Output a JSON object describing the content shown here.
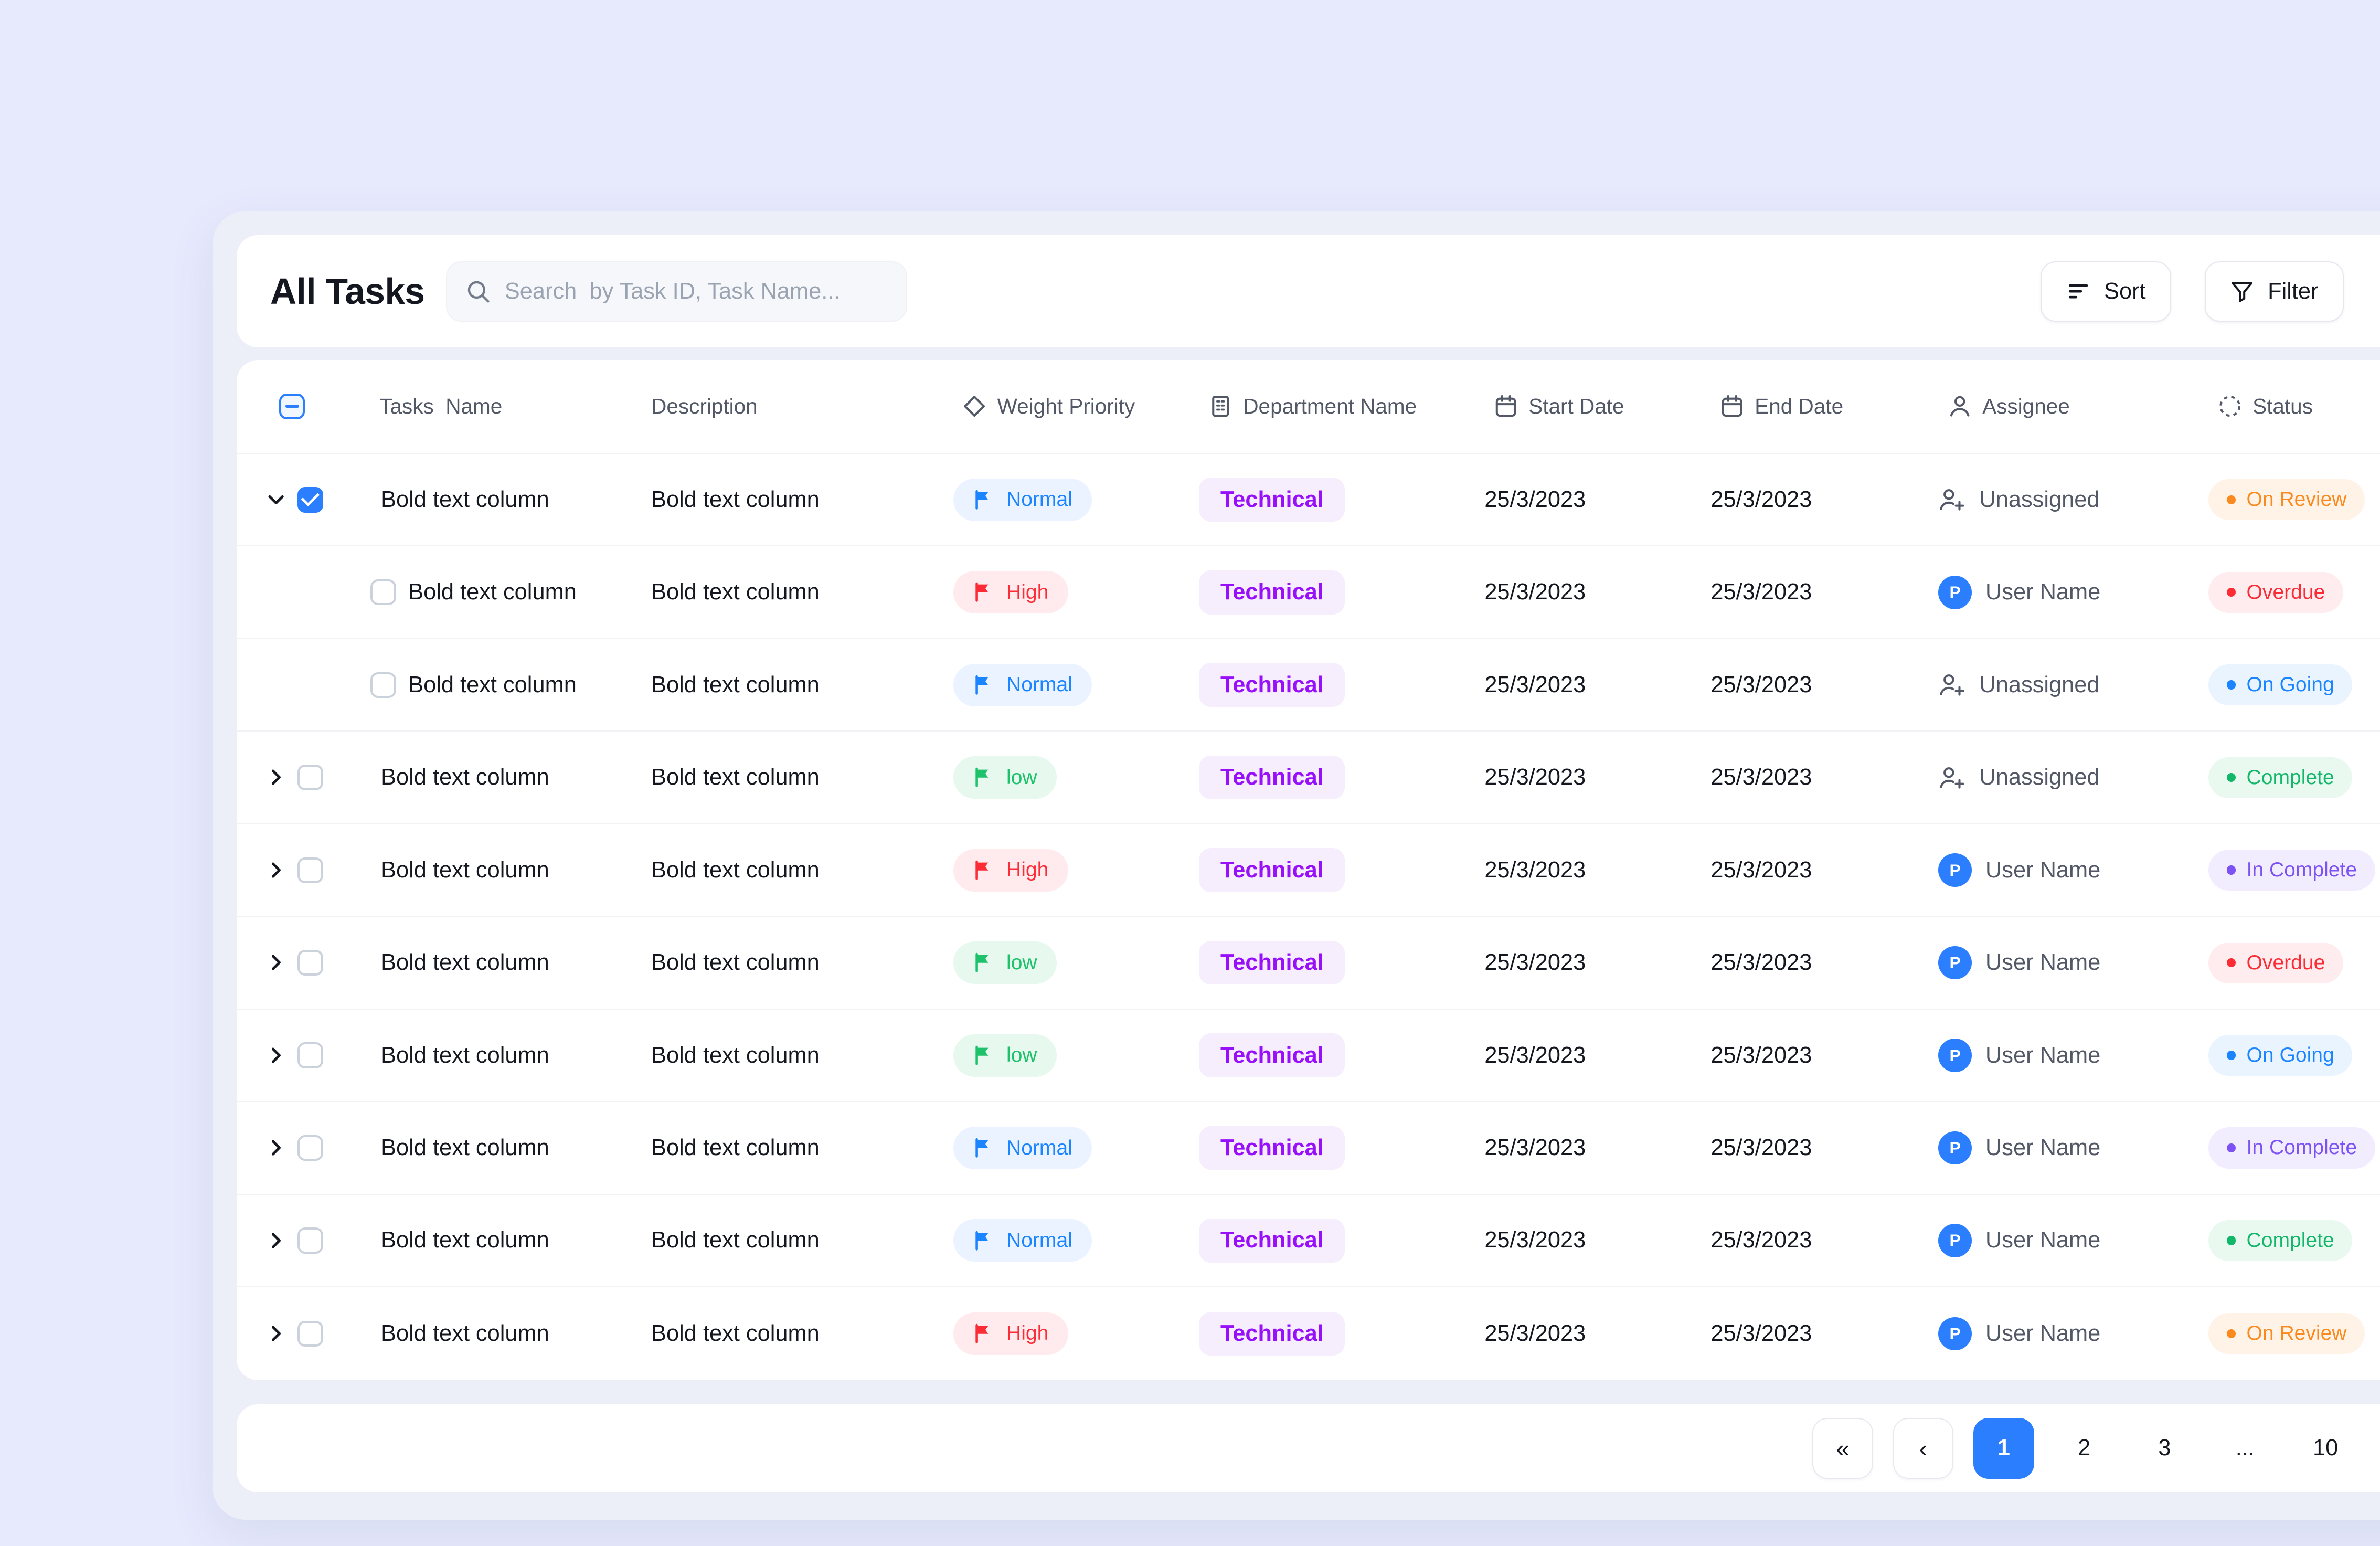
{
  "header": {
    "title": "All Tasks",
    "search_placeholder": "Search  by Task ID, Task Name...",
    "sort_label": "Sort",
    "filter_label": "Filter"
  },
  "table": {
    "columns": {
      "name": "Tasks  Name",
      "description": "Description",
      "priority": "Weight Priority",
      "department": "Department Name",
      "start": "Start Date",
      "end": "End Date",
      "assignee": "Assignee",
      "status": "Status"
    },
    "rows": [
      {
        "level": "parent",
        "expanded": true,
        "checked": true,
        "name": "Bold text column",
        "description": "Bold text column",
        "priority_label": "Normal",
        "priority_key": "normal",
        "department": "Technical",
        "start_date": "25/3/2023",
        "end_date": "25/3/2023",
        "assignee_type": "unassigned",
        "assignee_label": "Unassigned",
        "avatar_initial": "",
        "status_label": "On Review",
        "status_key": "review"
      },
      {
        "level": "child",
        "expanded": false,
        "checked": false,
        "name": "Bold text column",
        "description": "Bold text column",
        "priority_label": "High",
        "priority_key": "high",
        "department": "Technical",
        "start_date": "25/3/2023",
        "end_date": "25/3/2023",
        "assignee_type": "user",
        "assignee_label": "User Name",
        "avatar_initial": "P",
        "status_label": "Overdue",
        "status_key": "overdue"
      },
      {
        "level": "child",
        "expanded": false,
        "checked": false,
        "name": "Bold text column",
        "description": "Bold text column",
        "priority_label": "Normal",
        "priority_key": "normal",
        "department": "Technical",
        "start_date": "25/3/2023",
        "end_date": "25/3/2023",
        "assignee_type": "unassigned",
        "assignee_label": "Unassigned",
        "avatar_initial": "",
        "status_label": "On Going",
        "status_key": "ongoing"
      },
      {
        "level": "parent",
        "expanded": false,
        "checked": false,
        "name": "Bold text column",
        "description": "Bold text column",
        "priority_label": "low",
        "priority_key": "low",
        "department": "Technical",
        "start_date": "25/3/2023",
        "end_date": "25/3/2023",
        "assignee_type": "unassigned",
        "assignee_label": "Unassigned",
        "avatar_initial": "",
        "status_label": "Complete",
        "status_key": "complete"
      },
      {
        "level": "parent",
        "expanded": false,
        "checked": false,
        "name": "Bold text column",
        "description": "Bold text column",
        "priority_label": "High",
        "priority_key": "high",
        "department": "Technical",
        "start_date": "25/3/2023",
        "end_date": "25/3/2023",
        "assignee_type": "user",
        "assignee_label": "User Name",
        "avatar_initial": "P",
        "status_label": "In Complete",
        "status_key": "incomplete"
      },
      {
        "level": "parent",
        "expanded": false,
        "checked": false,
        "name": "Bold text column",
        "description": "Bold text column",
        "priority_label": "low",
        "priority_key": "low",
        "department": "Technical",
        "start_date": "25/3/2023",
        "end_date": "25/3/2023",
        "assignee_type": "user",
        "assignee_label": "User Name",
        "avatar_initial": "P",
        "status_label": "Overdue",
        "status_key": "overdue"
      },
      {
        "level": "parent",
        "expanded": false,
        "checked": false,
        "name": "Bold text column",
        "description": "Bold text column",
        "priority_label": "low",
        "priority_key": "low",
        "department": "Technical",
        "start_date": "25/3/2023",
        "end_date": "25/3/2023",
        "assignee_type": "user",
        "assignee_label": "User Name",
        "avatar_initial": "P",
        "status_label": "On Going",
        "status_key": "ongoing"
      },
      {
        "level": "parent",
        "expanded": false,
        "checked": false,
        "name": "Bold text column",
        "description": "Bold text column",
        "priority_label": "Normal",
        "priority_key": "normal",
        "department": "Technical",
        "start_date": "25/3/2023",
        "end_date": "25/3/2023",
        "assignee_type": "user",
        "assignee_label": "User Name",
        "avatar_initial": "P",
        "status_label": "In Complete",
        "status_key": "incomplete"
      },
      {
        "level": "parent",
        "expanded": false,
        "checked": false,
        "name": "Bold text column",
        "description": "Bold text column",
        "priority_label": "Normal",
        "priority_key": "normal",
        "department": "Technical",
        "start_date": "25/3/2023",
        "end_date": "25/3/2023",
        "assignee_type": "user",
        "assignee_label": "User Name",
        "avatar_initial": "P",
        "status_label": "Complete",
        "status_key": "complete"
      },
      {
        "level": "parent",
        "expanded": false,
        "checked": false,
        "name": "Bold text column",
        "description": "Bold text column",
        "priority_label": "High",
        "priority_key": "high",
        "department": "Technical",
        "start_date": "25/3/2023",
        "end_date": "25/3/2023",
        "assignee_type": "user",
        "assignee_label": "User Name",
        "avatar_initial": "P",
        "status_label": "On Review",
        "status_key": "review"
      }
    ]
  },
  "pagination": {
    "first": "«",
    "prev": "‹",
    "pages": [
      "1",
      "2",
      "3",
      "...",
      "10"
    ],
    "active_page": "1",
    "next": "›"
  },
  "colors": {
    "accent": "#2b7fff",
    "priority_normal": "#1b84ff",
    "priority_high": "#fb2c36",
    "priority_low": "#1fc16b",
    "department": "#9810fa",
    "status_on_review": "#fb8a1e",
    "status_overdue": "#fb2c36",
    "status_on_going": "#1b84ff",
    "status_complete": "#12b76a",
    "status_in_complete": "#7d52f4"
  }
}
